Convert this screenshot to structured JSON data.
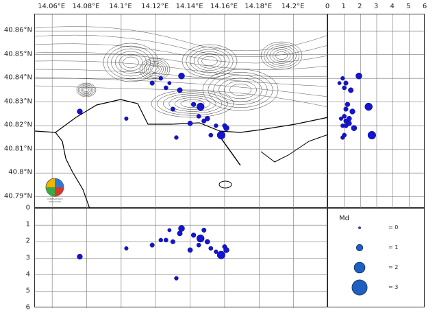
{
  "map": {
    "lon_ticks": [
      "14.06°E",
      "14.08°E",
      "14.1°E",
      "14.12°E",
      "14.14°E",
      "14.16°E",
      "14.18°E",
      "14.2°E"
    ],
    "lat_ticks": [
      "40.86°N",
      "40.85°N",
      "40.84°N",
      "40.83°N",
      "40.82°N",
      "40.81°N",
      "40.8°N",
      "40.79°N"
    ],
    "logo_text": "OSSERVATORIO VESUVIANO",
    "coast_color": "#000000"
  },
  "depth_axis": {
    "ticks": [
      "0",
      "1",
      "2",
      "3",
      "4",
      "5",
      "6"
    ]
  },
  "md_axis": {
    "ticks": [
      "0",
      "1",
      "2",
      "3",
      "4",
      "5",
      "6"
    ]
  },
  "legend": {
    "title": "Md",
    "entries": [
      {
        "label": "= 0",
        "md": 0
      },
      {
        "label": "= 1",
        "md": 1
      },
      {
        "label": "= 2",
        "md": 2
      },
      {
        "label": "= 3",
        "md": 3
      }
    ],
    "marker_color": "#1f5fbf"
  },
  "chart_data": {
    "type": "scatter",
    "lon_range": [
      14.05,
      14.22
    ],
    "lat_range": [
      40.785,
      40.867
    ],
    "depth_range": [
      0,
      6
    ],
    "md_range": [
      0,
      6
    ],
    "events": [
      {
        "lon": 14.076,
        "lat": 40.826,
        "depth": 2.9,
        "md": 1.5
      },
      {
        "lon": 14.103,
        "lat": 40.823,
        "depth": 2.4,
        "md": 0.8
      },
      {
        "lon": 14.118,
        "lat": 40.838,
        "depth": 2.2,
        "md": 1.1
      },
      {
        "lon": 14.123,
        "lat": 40.84,
        "depth": 1.9,
        "md": 0.9
      },
      {
        "lon": 14.126,
        "lat": 40.836,
        "depth": 1.9,
        "md": 1.0
      },
      {
        "lon": 14.128,
        "lat": 40.838,
        "depth": 1.3,
        "md": 0.7
      },
      {
        "lon": 14.13,
        "lat": 40.827,
        "depth": 2.0,
        "md": 1.1
      },
      {
        "lon": 14.132,
        "lat": 40.815,
        "depth": 4.2,
        "md": 0.9
      },
      {
        "lon": 14.134,
        "lat": 40.835,
        "depth": 1.5,
        "md": 1.4
      },
      {
        "lon": 14.135,
        "lat": 40.841,
        "depth": 1.2,
        "md": 1.9
      },
      {
        "lon": 14.14,
        "lat": 40.821,
        "depth": 2.5,
        "md": 1.3
      },
      {
        "lon": 14.142,
        "lat": 40.829,
        "depth": 1.6,
        "md": 1.2
      },
      {
        "lon": 14.145,
        "lat": 40.824,
        "depth": 2.2,
        "md": 1.0
      },
      {
        "lon": 14.146,
        "lat": 40.828,
        "depth": 1.8,
        "md": 2.5
      },
      {
        "lon": 14.148,
        "lat": 40.822,
        "depth": 1.3,
        "md": 1.1
      },
      {
        "lon": 14.15,
        "lat": 40.823,
        "depth": 2.0,
        "md": 1.3
      },
      {
        "lon": 14.152,
        "lat": 40.816,
        "depth": 2.4,
        "md": 1.0
      },
      {
        "lon": 14.155,
        "lat": 40.82,
        "depth": 2.6,
        "md": 0.9
      },
      {
        "lon": 14.158,
        "lat": 40.816,
        "depth": 2.8,
        "md": 2.7
      },
      {
        "lon": 14.16,
        "lat": 40.82,
        "depth": 2.3,
        "md": 1.1
      },
      {
        "lon": 14.161,
        "lat": 40.819,
        "depth": 2.5,
        "md": 1.6
      }
    ]
  }
}
